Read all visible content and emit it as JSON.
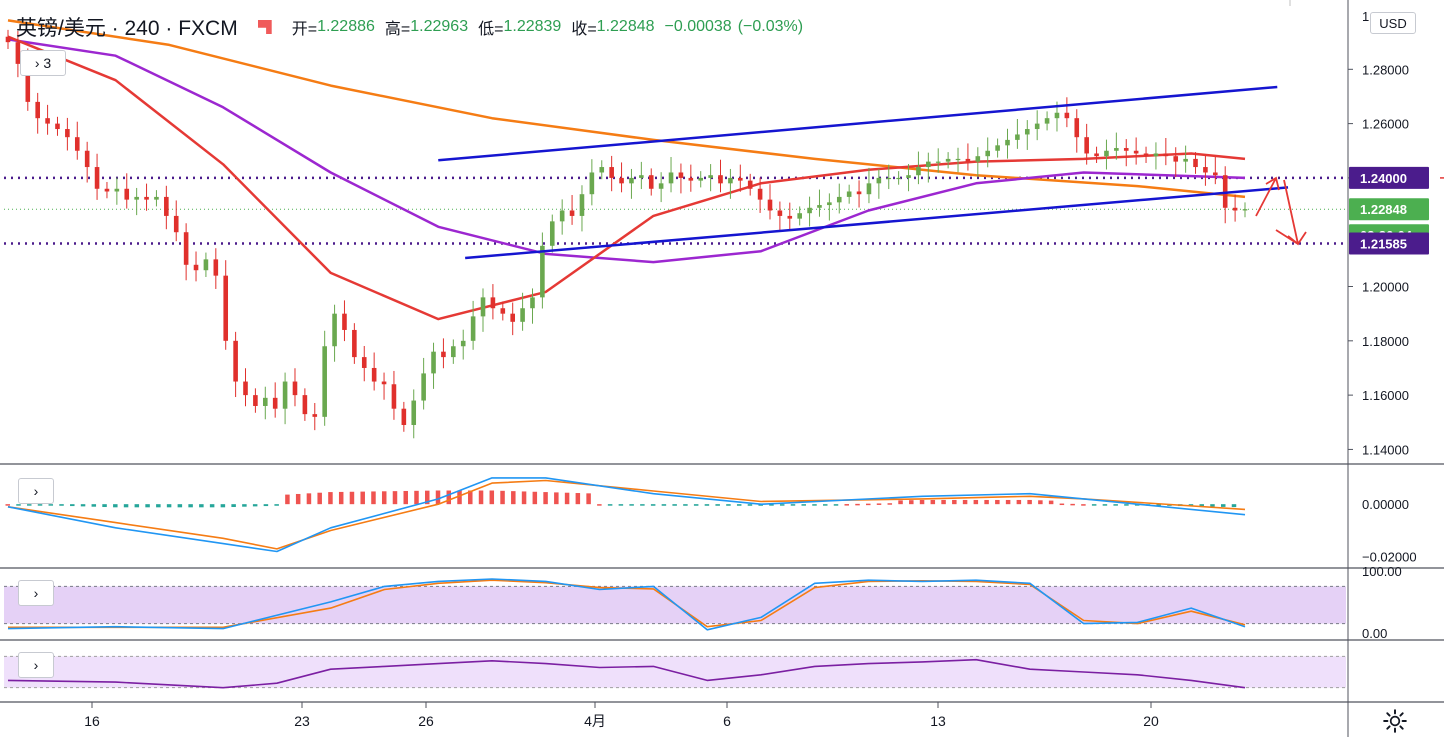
{
  "header": {
    "symbol": "英镑/美元 · 240 · FXCM",
    "open_label": "开=",
    "open": "1.22886",
    "high_label": "高=",
    "high": "1.22963",
    "low_label": "低=",
    "low": "1.22839",
    "close_label": "收=",
    "close": "1.22848",
    "change": "−0.00038",
    "change_pct": "(−0.03%)"
  },
  "price_scale": {
    "currency_button": "USD",
    "tick_labels": [
      "1.28000",
      "1.26000",
      "1.24000",
      "1.22848",
      "1.20000",
      "1.18000",
      "1.16000",
      "1.14000"
    ],
    "top_partial_label": "1.",
    "badges": [
      {
        "text": "1.24000",
        "color": "#4b1c8c"
      },
      {
        "text": "1.22848",
        "color": "#4caf50"
      },
      {
        "text": "03:26:04",
        "color": "#4caf50"
      },
      {
        "text": "1.21585",
        "color": "#4b1c8c"
      }
    ]
  },
  "collapse_buttons": {
    "main": "› 3",
    "macd": "›",
    "stoch": "›",
    "rsi": "›"
  },
  "macd_scale": [
    "0.00000",
    "−0.02000"
  ],
  "stoch_scale": [
    "100.00",
    "0.00"
  ],
  "time_axis": [
    "16",
    "23",
    "26",
    "4月",
    "6",
    "13",
    "20"
  ],
  "colors": {
    "up_candle": "#6aa84f",
    "down_candle": "#e0302c",
    "ma_fast": "#e53935",
    "ma_mid": "#9c27d0",
    "ma_slow": "#f57c14",
    "trendline": "#1515d0",
    "level_line": "#4b1c8c",
    "arrow": "#e53935",
    "macd_line": "#2196f3",
    "signal_line": "#f57c14",
    "hist_pos": "#ef5350",
    "hist_neg": "#26a69a",
    "stoch_k": "#2196f3",
    "stoch_d": "#f57c14",
    "rsi_line": "#7b1fa2"
  },
  "chart_data": {
    "type": "candlestick",
    "symbol": "英镑/美元",
    "interval": "240",
    "source": "FXCM",
    "y_range": [
      1.135,
      1.3
    ],
    "horizontal_levels": [
      1.24,
      1.21585
    ],
    "last_price": 1.22848,
    "close_series": [
      1.29,
      1.282,
      1.268,
      1.262,
      1.26,
      1.258,
      1.255,
      1.25,
      1.244,
      1.236,
      1.235,
      1.236,
      1.232,
      1.233,
      1.232,
      1.233,
      1.226,
      1.22,
      1.208,
      1.206,
      1.21,
      1.204,
      1.18,
      1.165,
      1.16,
      1.156,
      1.159,
      1.155,
      1.165,
      1.16,
      1.153,
      1.152,
      1.178,
      1.19,
      1.184,
      1.174,
      1.17,
      1.165,
      1.164,
      1.155,
      1.149,
      1.158,
      1.168,
      1.176,
      1.174,
      1.178,
      1.18,
      1.189,
      1.196,
      1.192,
      1.19,
      1.187,
      1.192,
      1.196,
      1.215,
      1.224,
      1.228,
      1.226,
      1.234,
      1.242,
      1.244,
      1.24,
      1.238,
      1.24,
      1.241,
      1.236,
      1.238,
      1.242,
      1.24,
      1.239,
      1.24,
      1.241,
      1.238,
      1.24,
      1.239,
      1.236,
      1.232,
      1.228,
      1.226,
      1.225,
      1.227,
      1.229,
      1.23,
      1.231,
      1.233,
      1.235,
      1.234,
      1.238,
      1.24,
      1.24,
      1.24,
      1.241,
      1.244,
      1.246,
      1.246,
      1.247,
      1.247,
      1.246,
      1.248,
      1.25,
      1.252,
      1.254,
      1.256,
      1.258,
      1.26,
      1.262,
      1.264,
      1.262,
      1.255,
      1.249,
      1.248,
      1.25,
      1.251,
      1.25,
      1.249,
      1.248,
      1.249,
      1.248,
      1.246,
      1.247,
      1.244,
      1.242,
      1.241,
      1.229,
      1.228,
      1.2285
    ],
    "ma_fast_points": [
      [
        0,
        1.292
      ],
      [
        20,
        1.276
      ],
      [
        40,
        1.245
      ],
      [
        60,
        1.205
      ],
      [
        80,
        1.188
      ],
      [
        100,
        1.198
      ],
      [
        120,
        1.226
      ],
      [
        140,
        1.238
      ],
      [
        160,
        1.243
      ],
      [
        180,
        1.246
      ],
      [
        200,
        1.247
      ],
      [
        220,
        1.249
      ],
      [
        230,
        1.247
      ]
    ],
    "ma_mid_points": [
      [
        0,
        1.291
      ],
      [
        20,
        1.285
      ],
      [
        40,
        1.266
      ],
      [
        60,
        1.242
      ],
      [
        80,
        1.222
      ],
      [
        100,
        1.212
      ],
      [
        120,
        1.209
      ],
      [
        140,
        1.213
      ],
      [
        160,
        1.228
      ],
      [
        180,
        1.238
      ],
      [
        200,
        1.242
      ],
      [
        230,
        1.24
      ]
    ],
    "ma_slow_points": [
      [
        0,
        1.298
      ],
      [
        30,
        1.289
      ],
      [
        60,
        1.274
      ],
      [
        90,
        1.262
      ],
      [
        120,
        1.254
      ],
      [
        150,
        1.247
      ],
      [
        180,
        1.241
      ],
      [
        210,
        1.237
      ],
      [
        230,
        1.233
      ]
    ],
    "trendlines": [
      {
        "from": [
          80,
          1.2465
        ],
        "to": [
          236,
          1.2735
        ]
      },
      {
        "from": [
          85,
          1.2105
        ],
        "to": [
          238,
          1.2365
        ]
      }
    ],
    "macd": {
      "y_range": [
        -0.022,
        0.013
      ],
      "macd": [
        [
          0,
          -0.001
        ],
        [
          20,
          -0.009
        ],
        [
          40,
          -0.015
        ],
        [
          50,
          -0.018
        ],
        [
          60,
          -0.009
        ],
        [
          80,
          0.002
        ],
        [
          90,
          0.01
        ],
        [
          100,
          0.01
        ],
        [
          120,
          0.004
        ],
        [
          140,
          0.0
        ],
        [
          170,
          0.003
        ],
        [
          190,
          0.004
        ],
        [
          200,
          0.002
        ],
        [
          230,
          -0.004
        ]
      ],
      "signal": [
        [
          0,
          -0.001
        ],
        [
          20,
          -0.007
        ],
        [
          40,
          -0.013
        ],
        [
          50,
          -0.017
        ],
        [
          60,
          -0.01
        ],
        [
          80,
          0.0
        ],
        [
          90,
          0.008
        ],
        [
          100,
          0.009
        ],
        [
          120,
          0.005
        ],
        [
          140,
          0.001
        ],
        [
          170,
          0.002
        ],
        [
          190,
          0.003
        ],
        [
          200,
          0.002
        ],
        [
          230,
          -0.002
        ]
      ]
    },
    "stochastic": {
      "y_range": [
        0,
        100
      ],
      "k": [
        [
          0,
          12
        ],
        [
          20,
          15
        ],
        [
          40,
          12
        ],
        [
          60,
          55
        ],
        [
          70,
          80
        ],
        [
          80,
          88
        ],
        [
          90,
          92
        ],
        [
          100,
          88
        ],
        [
          110,
          75
        ],
        [
          120,
          80
        ],
        [
          130,
          10
        ],
        [
          140,
          30
        ],
        [
          150,
          85
        ],
        [
          160,
          90
        ],
        [
          170,
          88
        ],
        [
          180,
          90
        ],
        [
          190,
          85
        ],
        [
          200,
          20
        ],
        [
          210,
          22
        ],
        [
          220,
          45
        ],
        [
          230,
          15
        ]
      ],
      "d": [
        [
          0,
          14
        ],
        [
          20,
          14
        ],
        [
          40,
          14
        ],
        [
          60,
          45
        ],
        [
          70,
          75
        ],
        [
          80,
          85
        ],
        [
          90,
          90
        ],
        [
          100,
          86
        ],
        [
          110,
          78
        ],
        [
          120,
          76
        ],
        [
          130,
          15
        ],
        [
          140,
          25
        ],
        [
          150,
          78
        ],
        [
          160,
          88
        ],
        [
          170,
          89
        ],
        [
          180,
          88
        ],
        [
          190,
          83
        ],
        [
          200,
          25
        ],
        [
          210,
          20
        ],
        [
          220,
          40
        ],
        [
          230,
          18
        ]
      ]
    },
    "rsi": {
      "y_range": [
        0,
        100
      ],
      "values": [
        [
          0,
          35
        ],
        [
          20,
          32
        ],
        [
          40,
          22
        ],
        [
          50,
          30
        ],
        [
          60,
          55
        ],
        [
          70,
          60
        ],
        [
          80,
          65
        ],
        [
          90,
          70
        ],
        [
          100,
          65
        ],
        [
          110,
          58
        ],
        [
          120,
          60
        ],
        [
          130,
          35
        ],
        [
          140,
          45
        ],
        [
          150,
          60
        ],
        [
          160,
          65
        ],
        [
          170,
          68
        ],
        [
          180,
          72
        ],
        [
          190,
          55
        ],
        [
          200,
          50
        ],
        [
          210,
          45
        ],
        [
          220,
          35
        ],
        [
          230,
          22
        ]
      ]
    }
  }
}
